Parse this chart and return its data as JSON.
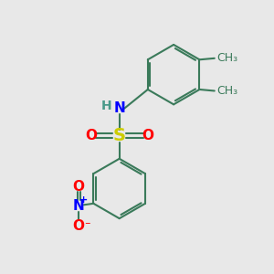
{
  "bg_color": "#e8e8e8",
  "bond_color": "#3a7a5a",
  "bond_width": 1.5,
  "S_color": "#cccc00",
  "O_color": "#ff0000",
  "N_color": "#0000ff",
  "H_color": "#4a9a8a",
  "text_size": 11,
  "small_text_size": 9,
  "figsize": [
    3.0,
    3.0
  ],
  "dpi": 100,
  "xlim": [
    0,
    10
  ],
  "ylim": [
    0,
    10
  ]
}
